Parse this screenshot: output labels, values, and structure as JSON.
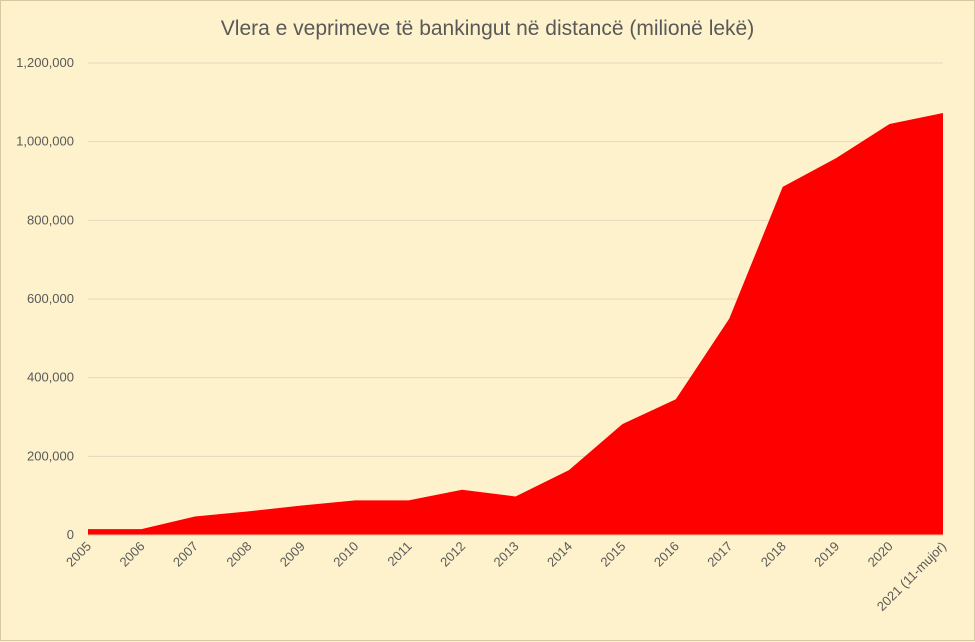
{
  "chart_data": {
    "type": "area",
    "title": "Vlera e veprimeve të bankingut në distancë (milionë lekë)",
    "xlabel": "",
    "ylabel": "",
    "categories": [
      "2005",
      "2006",
      "2007",
      "2008",
      "2009",
      "2010",
      "2011",
      "2012",
      "2013",
      "2014",
      "2015",
      "2016",
      "2017",
      "2018",
      "2019",
      "2020",
      "2021 (11-mujor)"
    ],
    "series": [
      {
        "values": [
          15000,
          15000,
          47000,
          60000,
          75000,
          88000,
          88000,
          115000,
          98000,
          165000,
          282000,
          345000,
          550000,
          885000,
          958000,
          1045000,
          1073000
        ],
        "color": "#ff0000"
      }
    ],
    "ylim": [
      0,
      1200000
    ],
    "yticks": [
      0,
      200000,
      400000,
      600000,
      800000,
      1000000,
      1200000
    ],
    "ytick_labels": [
      "0",
      "200,000",
      "400,000",
      "600,000",
      "800,000",
      "1,000,000",
      "1,200,000"
    ],
    "grid": true,
    "legend": "none"
  }
}
